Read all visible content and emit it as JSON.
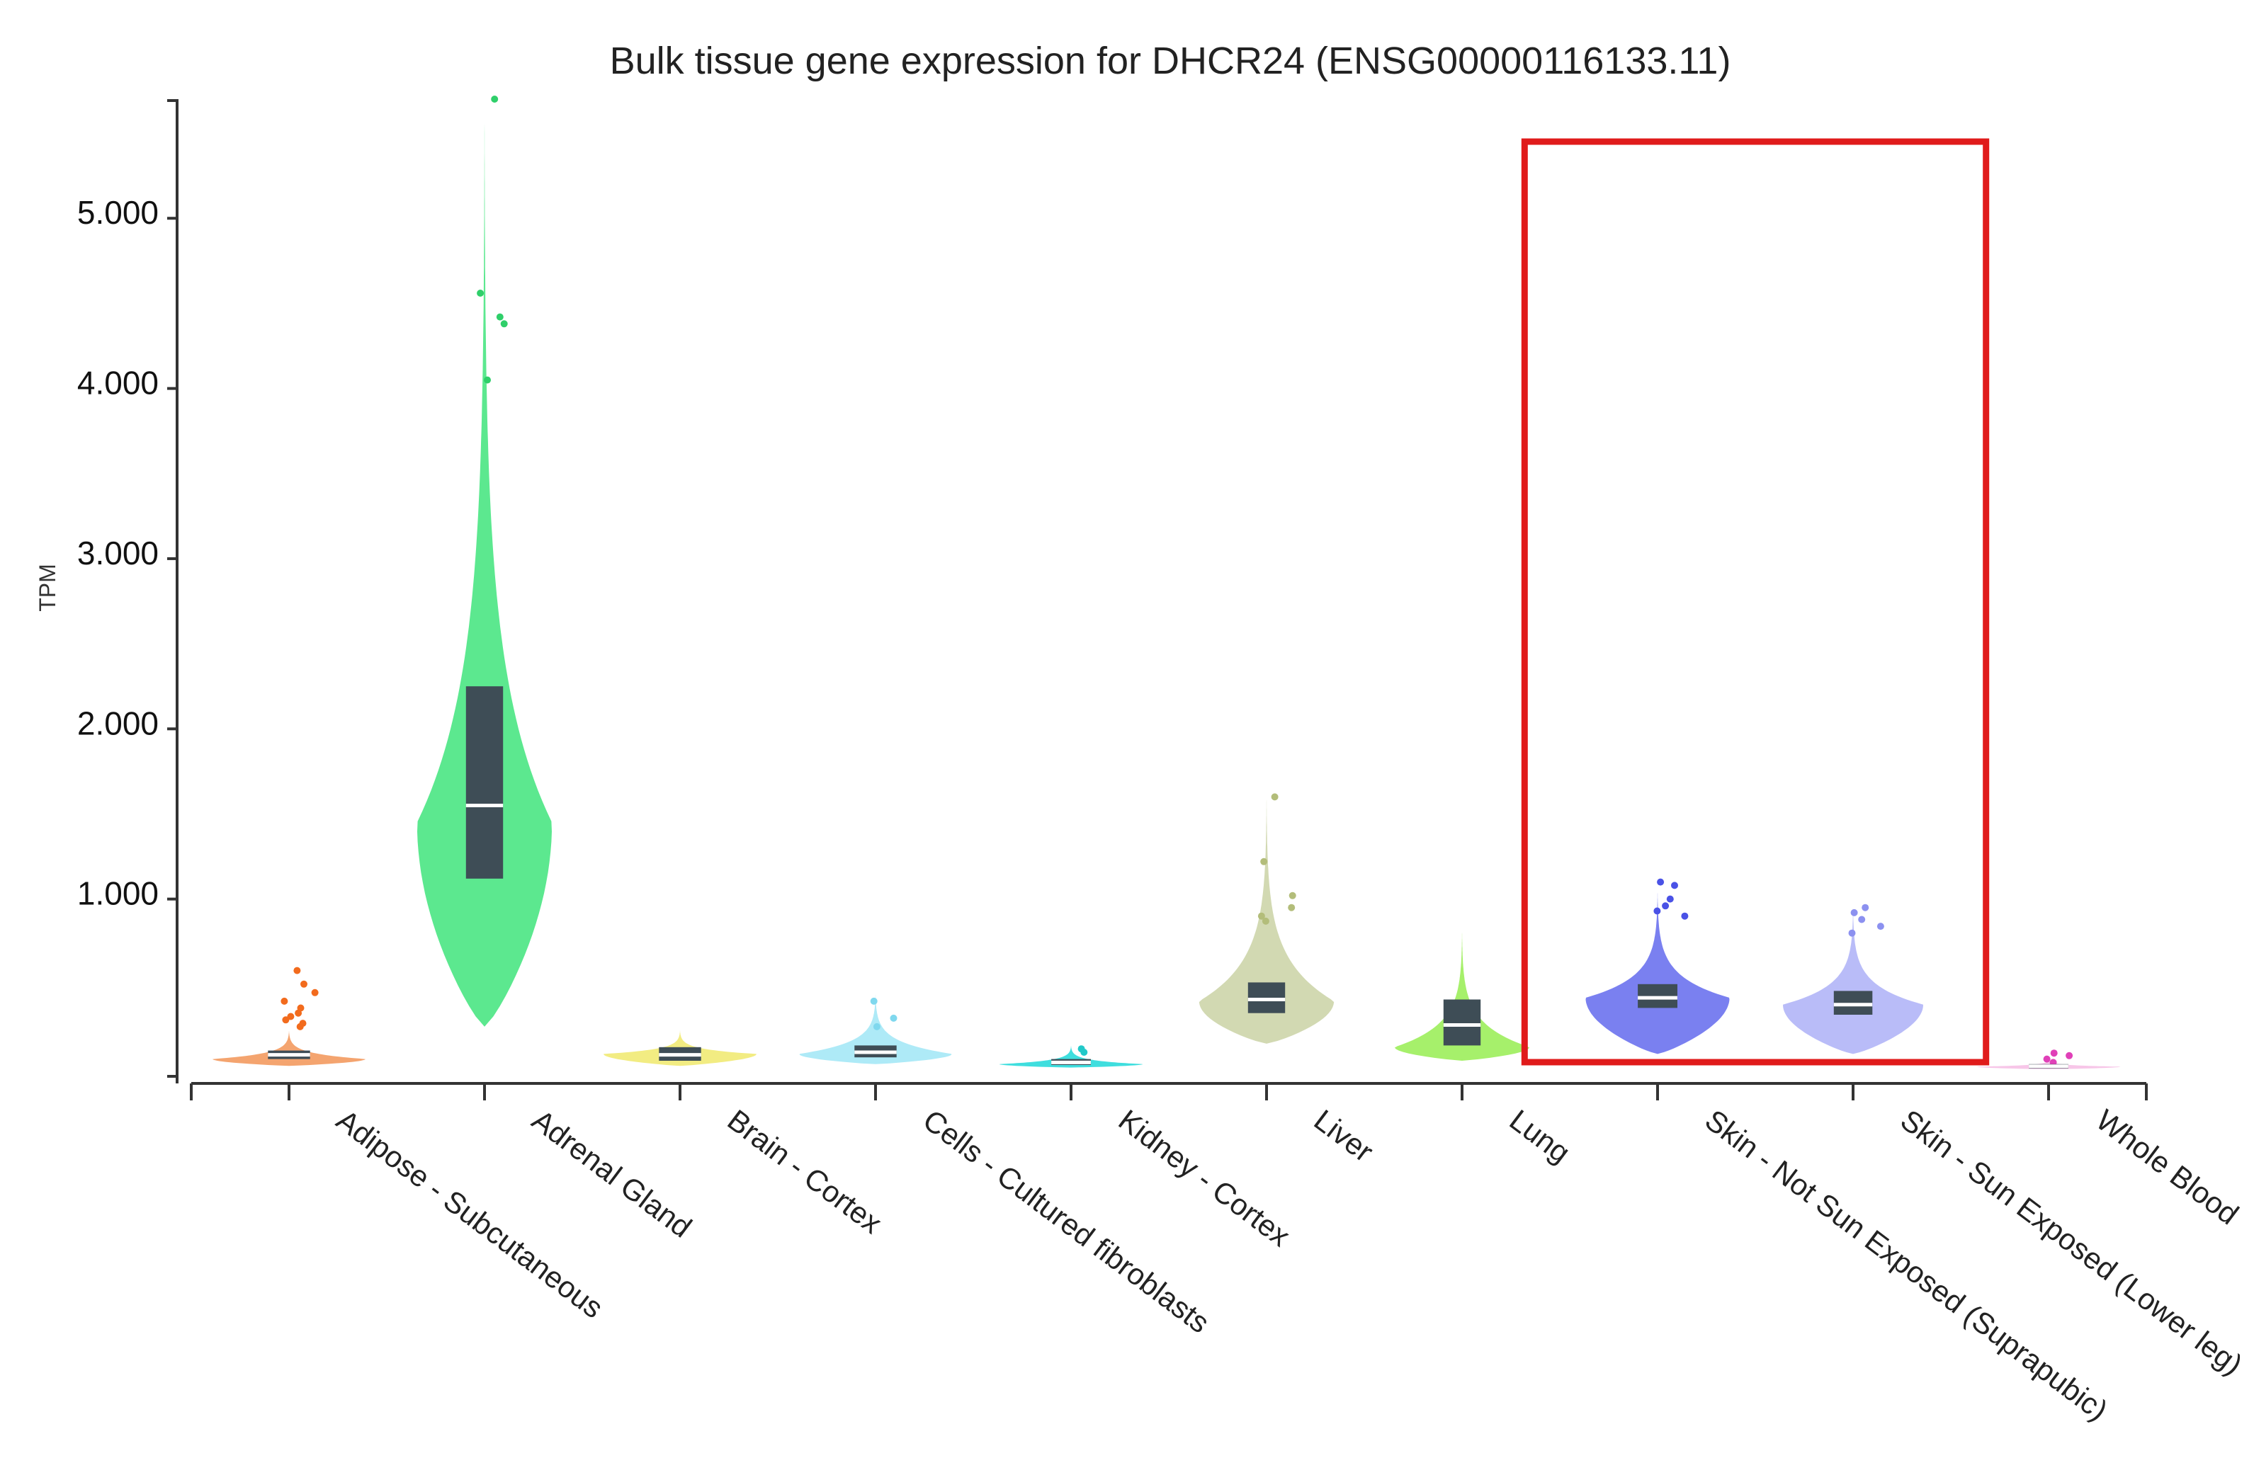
{
  "chart_data": {
    "type": "violin",
    "title": "Bulk tissue gene expression for DHCR24 (ENSG00000116133.11)",
    "ylabel": "TPM",
    "ylim": [
      0,
      5700
    ],
    "yticks": [
      1000,
      2000,
      3000,
      4000,
      5000
    ],
    "ytick_labels": [
      "1.000",
      "2.000",
      "3.000",
      "4.000",
      "5.000"
    ],
    "categories": [
      "Adipose - Subcutaneous",
      "Adrenal Gland",
      "Brain - Cortex",
      "Cells - Cultured fibroblasts",
      "Kidney - Cortex",
      "Liver",
      "Lung",
      "Skin - Not Sun Exposed (Suprapubic)",
      "Skin - Sun Exposed (Lower leg)",
      "Whole Blood"
    ],
    "series": [
      {
        "color": "#f4a46f",
        "point_color": "#f26b1d",
        "min": 20,
        "q1": 60,
        "median": 85,
        "q3": 110,
        "max": 230,
        "mode": 60,
        "width": 0.85,
        "outliers": [
          250,
          270,
          290,
          310,
          330,
          360,
          400,
          450,
          500,
          580
        ]
      },
      {
        "color": "#5ce88f",
        "point_color": "#2fcf6a",
        "min": 250,
        "q1": 1120,
        "median": 1550,
        "q3": 2250,
        "max": 5680,
        "mode": 1450,
        "width": 0.75,
        "outliers": [
          4050,
          4380,
          4420,
          4560,
          5700
        ]
      },
      {
        "color": "#f2ec82",
        "point_color": "#e0d63c",
        "min": 20,
        "q1": 50,
        "median": 85,
        "q3": 130,
        "max": 230,
        "mode": 90,
        "width": 0.85,
        "outliers": []
      },
      {
        "color": "#aeeaf7",
        "point_color": "#7fd8ee",
        "min": 30,
        "q1": 70,
        "median": 100,
        "q3": 140,
        "max": 450,
        "mode": 90,
        "width": 0.85,
        "outliers": [
          250,
          300,
          400
        ]
      },
      {
        "color": "#3fdede",
        "point_color": "#22c9c9",
        "min": 10,
        "q1": 25,
        "median": 40,
        "q3": 60,
        "max": 140,
        "mode": 30,
        "width": 0.8,
        "outliers": [
          100,
          120
        ]
      },
      {
        "color": "#d2d9b2",
        "point_color": "#b3bd7a",
        "min": 150,
        "q1": 330,
        "median": 410,
        "q3": 510,
        "max": 1620,
        "mode": 400,
        "width": 0.75,
        "outliers": [
          870,
          900,
          950,
          1020,
          1220,
          1600
        ]
      },
      {
        "color": "#a6f06b",
        "point_color": "#7fdc3f",
        "min": 50,
        "q1": 140,
        "median": 260,
        "q3": 410,
        "max": 820,
        "mode": 130,
        "width": 0.75,
        "outliers": []
      },
      {
        "color": "#7a80f0",
        "point_color": "#4a52e6",
        "min": 90,
        "q1": 360,
        "median": 420,
        "q3": 500,
        "max": 1050,
        "mode": 420,
        "width": 0.8,
        "outliers": [
          900,
          930,
          960,
          1000,
          1080,
          1100
        ]
      },
      {
        "color": "#b9bcf8",
        "point_color": "#8c91f0",
        "min": 90,
        "q1": 320,
        "median": 380,
        "q3": 460,
        "max": 960,
        "mode": 380,
        "width": 0.78,
        "outliers": [
          800,
          840,
          880,
          920,
          950
        ]
      },
      {
        "color": "#f7c6e8",
        "point_color": "#e040b8",
        "min": 0,
        "q1": 10,
        "median": 18,
        "q3": 30,
        "max": 60,
        "mode": 15,
        "width": 0.8,
        "outliers": [
          40,
          60,
          80,
          95
        ]
      }
    ],
    "box_color": "#3e4d56",
    "median_color": "#ffffff",
    "highlight": {
      "categories": [
        "Skin - Not Sun Exposed (Suprapubic)",
        "Skin - Sun Exposed (Lower leg)"
      ],
      "color": "#e01b1b"
    }
  }
}
